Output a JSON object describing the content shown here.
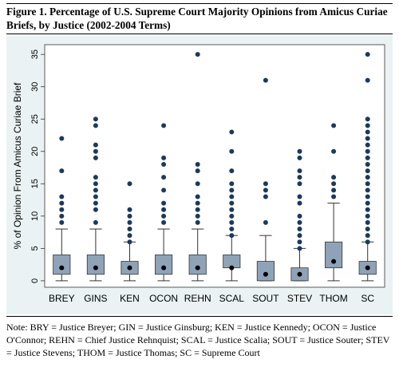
{
  "figure": {
    "title": "Figure 1. Percentage of U.S. Supreme Court Majority Opinions from Amicus Curiae Briefs, by Justice (2002-2004 Terms)",
    "note": "Note: BRY = Justice Breyer; GIN = Justice Ginsburg; KEN = Justice Kennedy; OCON = Justice O'Connor; REHN = Chief Justice Rehnquist; SCAL = Justice Scalia; SOUT = Justice Souter; STEV = Justice Stevens; THOM = Justice Thomas; SC = Supreme Court"
  },
  "colors": {
    "panel": "#eaf2f3",
    "plot": "#ffffff",
    "box": "#8fa3b8",
    "outline": "#333333",
    "point": "#1b3a5c",
    "median_point": "#000000"
  },
  "chart_data": {
    "type": "box",
    "title": "",
    "xlabel": "",
    "ylabel": "% of Opinion From Amicus Curiae Brief",
    "ylim": [
      -1,
      36.5
    ],
    "yticks": [
      0,
      5,
      10,
      15,
      20,
      25,
      30,
      35
    ],
    "grid": false,
    "categories": [
      "BREY",
      "GINS",
      "KEN",
      "OCON",
      "REHN",
      "SCAL",
      "SOUT",
      "STEV",
      "THOM",
      "SC"
    ],
    "boxes": [
      {
        "name": "BREY",
        "min": 0,
        "q1": 1,
        "median": 2,
        "q3": 4,
        "max": 8,
        "outliers": [
          9,
          10,
          11,
          12,
          13,
          17,
          22
        ]
      },
      {
        "name": "GINS",
        "min": 0,
        "q1": 1,
        "median": 2,
        "q3": 4,
        "max": 8,
        "outliers": [
          9,
          11,
          12,
          13,
          14,
          15,
          16,
          19,
          20,
          21,
          24,
          25
        ]
      },
      {
        "name": "KEN",
        "min": 0,
        "q1": 1,
        "median": 2,
        "q3": 3,
        "max": 6,
        "outliers": [
          6,
          7,
          8,
          9,
          10,
          11,
          15
        ]
      },
      {
        "name": "OCON",
        "min": 0,
        "q1": 1,
        "median": 2,
        "q3": 4,
        "max": 8,
        "outliers": [
          9,
          10,
          11,
          12,
          14,
          16,
          18,
          19,
          24
        ]
      },
      {
        "name": "REHN",
        "min": 0,
        "q1": 1,
        "median": 2,
        "q3": 4,
        "max": 8,
        "outliers": [
          9,
          10,
          11,
          12,
          13,
          15,
          17,
          18,
          35
        ]
      },
      {
        "name": "SCAL",
        "min": 0,
        "q1": 2,
        "median": 2,
        "q3": 4,
        "max": 7,
        "outliers": [
          7,
          8,
          9,
          10,
          11,
          12,
          13,
          14,
          15,
          17,
          20,
          23
        ]
      },
      {
        "name": "SOUT",
        "min": 0,
        "q1": 0,
        "median": 1,
        "q3": 3,
        "max": 7,
        "outliers": [
          9,
          13,
          14,
          15,
          31
        ]
      },
      {
        "name": "STEV",
        "min": 0,
        "q1": 0,
        "median": 1,
        "q3": 2,
        "max": 5,
        "outliers": [
          5,
          6,
          7,
          8,
          9,
          10,
          12,
          13,
          15,
          16,
          17,
          19,
          20
        ]
      },
      {
        "name": "THOM",
        "min": 0,
        "q1": 2,
        "median": 3,
        "q3": 6,
        "max": 12,
        "outliers": [
          13,
          14,
          15,
          16,
          20,
          24
        ]
      },
      {
        "name": "SC",
        "min": 0,
        "q1": 1,
        "median": 2,
        "q3": 3,
        "max": 6,
        "outliers": [
          6,
          7,
          8,
          9,
          10,
          11,
          12,
          13,
          14,
          15,
          16,
          17,
          18,
          19,
          20,
          21,
          22,
          23,
          24,
          25,
          31,
          35
        ]
      }
    ]
  }
}
